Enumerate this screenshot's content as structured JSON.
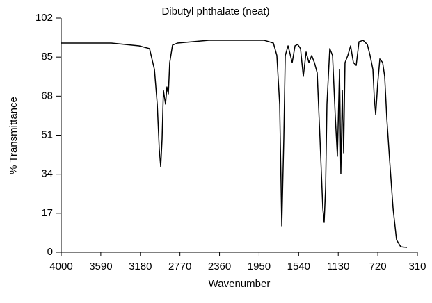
{
  "chart_data": {
    "type": "line",
    "title": "Dibutyl phthalate (neat)",
    "x_label": "Wavenumber",
    "y_label": "% Transmittance",
    "x": [
      4000,
      3481,
      3193,
      3085,
      3034,
      3005,
      2984,
      2969,
      2955,
      2941,
      2919,
      2905,
      2890,
      2876,
      2847,
      2796,
      2472,
      1896,
      1802,
      1766,
      1737,
      1715,
      1694,
      1679,
      1650,
      1607,
      1578,
      1550,
      1521,
      1492,
      1463,
      1434,
      1405,
      1377,
      1348,
      1319,
      1290,
      1276,
      1261,
      1247,
      1218,
      1189,
      1160,
      1139,
      1117,
      1103,
      1088,
      1074,
      1060,
      1031,
      1002,
      973,
      944,
      915,
      872,
      829,
      800,
      771,
      757,
      742,
      721,
      699,
      670,
      649,
      627,
      598,
      562,
      526,
      483,
      418
    ],
    "values": [
      91.1,
      91.1,
      89.9,
      88.7,
      79.6,
      64.5,
      44.8,
      37.2,
      49.3,
      70.5,
      64.5,
      72.0,
      69.0,
      82.6,
      90.2,
      91.1,
      92.3,
      92.3,
      91.1,
      85.7,
      64.5,
      11.5,
      49.3,
      85.7,
      89.9,
      82.6,
      89.9,
      90.5,
      88.7,
      76.6,
      87.2,
      82.6,
      85.7,
      82.6,
      78.1,
      49.3,
      19.1,
      13.0,
      28.2,
      64.5,
      88.7,
      85.7,
      58.4,
      41.8,
      79.6,
      34.2,
      70.5,
      43.3,
      82.6,
      85.7,
      89.9,
      82.6,
      81.4,
      91.7,
      92.3,
      90.5,
      85.7,
      79.6,
      67.5,
      59.9,
      73.6,
      84.2,
      82.6,
      76.6,
      58.4,
      40.3,
      19.1,
      5.4,
      2.4,
      2.1
    ],
    "color": "#000000",
    "xlim": [
      4000,
      310
    ],
    "xticks": [
      4000,
      3590,
      3180,
      2770,
      2360,
      1950,
      1540,
      1130,
      720,
      310
    ],
    "ylim": [
      0,
      102
    ],
    "yticks": [
      0,
      17,
      34,
      51,
      68,
      85,
      102
    ]
  }
}
